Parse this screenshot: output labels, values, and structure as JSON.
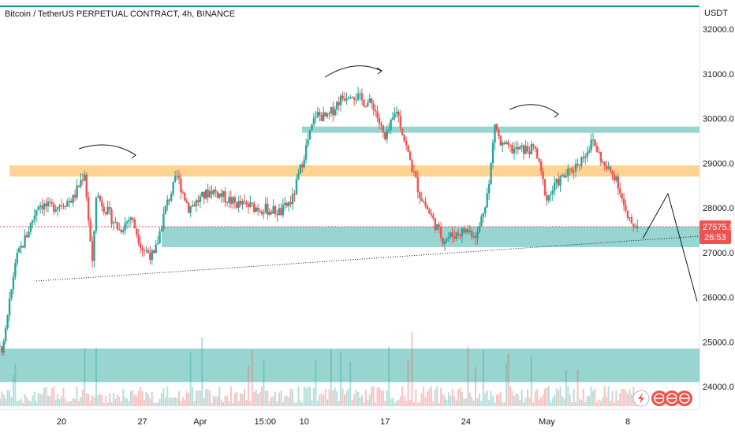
{
  "header": {
    "title": "Bitcoin / TetherUS PERPETUAL CONTRACT, 4h, BINANCE",
    "currency": "USDT"
  },
  "last_price": {
    "price": "27575.9",
    "countdown": "26:53"
  },
  "chart_data": {
    "type": "candlestick",
    "title": "Bitcoin / TetherUS PERPETUAL CONTRACT, 4h, BINANCE",
    "ylabel": "USDT",
    "ylim": [
      23900,
      32300
    ],
    "y_ticks": [
      {
        "value": 24000,
        "label": "24000.0"
      },
      {
        "value": 25000,
        "label": "25000.0"
      },
      {
        "value": 26000,
        "label": "26000.0"
      },
      {
        "value": 27000,
        "label": "27000.0"
      },
      {
        "value": 28000,
        "label": "28000.0"
      },
      {
        "value": 29000,
        "label": "29000.0"
      },
      {
        "value": 30000,
        "label": "30000.0"
      },
      {
        "value": 31000,
        "label": "31000.0"
      },
      {
        "value": 32000,
        "label": "32000.0"
      }
    ],
    "x_ticks": [
      {
        "date": "2023-03-20",
        "label": "20"
      },
      {
        "date": "2023-03-27",
        "label": "27"
      },
      {
        "date": "2023-04-01",
        "label": "Apr"
      },
      {
        "date": "2023-04-06 15:00",
        "label": "15:00"
      },
      {
        "date": "2023-04-10",
        "label": "10"
      },
      {
        "date": "2023-04-17",
        "label": "17"
      },
      {
        "date": "2023-04-24",
        "label": "24"
      },
      {
        "date": "2023-05-01",
        "label": "May"
      },
      {
        "date": "2023-05-08",
        "label": "8"
      }
    ],
    "key_points": [
      {
        "date": "2023-03-13",
        "close": 24500
      },
      {
        "date": "2023-03-15",
        "close": 24900
      },
      {
        "date": "2023-03-16",
        "close": 26800
      },
      {
        "date": "2023-03-17",
        "close": 27400
      },
      {
        "date": "2023-03-18",
        "close": 28100
      },
      {
        "date": "2023-03-19",
        "close": 28000
      },
      {
        "date": "2023-03-21",
        "close": 28200
      },
      {
        "date": "2023-03-22",
        "close": 28800
      },
      {
        "date": "2023-03-22 16:00",
        "close": 26700
      },
      {
        "date": "2023-03-23",
        "close": 28300
      },
      {
        "date": "2023-03-25",
        "close": 27500
      },
      {
        "date": "2023-03-26",
        "close": 27800
      },
      {
        "date": "2023-03-27",
        "close": 27100
      },
      {
        "date": "2023-03-28",
        "close": 26900
      },
      {
        "date": "2023-03-29",
        "close": 28000
      },
      {
        "date": "2023-03-30",
        "close": 28700
      },
      {
        "date": "2023-03-31",
        "close": 28000
      },
      {
        "date": "2023-04-02",
        "close": 28400
      },
      {
        "date": "2023-04-04",
        "close": 28100
      },
      {
        "date": "2023-04-06",
        "close": 28000
      },
      {
        "date": "2023-04-08",
        "close": 27900
      },
      {
        "date": "2023-04-09",
        "close": 28200
      },
      {
        "date": "2023-04-10",
        "close": 29200
      },
      {
        "date": "2023-04-11",
        "close": 30100
      },
      {
        "date": "2023-04-12",
        "close": 30000
      },
      {
        "date": "2023-04-13",
        "close": 30400
      },
      {
        "date": "2023-04-14",
        "close": 30600
      },
      {
        "date": "2023-04-15",
        "close": 30400
      },
      {
        "date": "2023-04-16",
        "close": 30300
      },
      {
        "date": "2023-04-17",
        "close": 29500
      },
      {
        "date": "2023-04-18",
        "close": 30200
      },
      {
        "date": "2023-04-19",
        "close": 29200
      },
      {
        "date": "2023-04-20",
        "close": 28300
      },
      {
        "date": "2023-04-21",
        "close": 27800
      },
      {
        "date": "2023-04-22",
        "close": 27300
      },
      {
        "date": "2023-04-24",
        "close": 27500
      },
      {
        "date": "2023-04-25",
        "close": 27400
      },
      {
        "date": "2023-04-26",
        "close": 28500
      },
      {
        "date": "2023-04-26 12:00",
        "close": 29900
      },
      {
        "date": "2023-04-27",
        "close": 29400
      },
      {
        "date": "2023-04-28",
        "close": 29300
      },
      {
        "date": "2023-04-29",
        "close": 29300
      },
      {
        "date": "2023-04-30",
        "close": 29300
      },
      {
        "date": "2023-05-01",
        "close": 28200
      },
      {
        "date": "2023-05-02",
        "close": 28600
      },
      {
        "date": "2023-05-03",
        "close": 28800
      },
      {
        "date": "2023-05-04",
        "close": 29100
      },
      {
        "date": "2023-05-05",
        "close": 29500
      },
      {
        "date": "2023-05-06",
        "close": 28900
      },
      {
        "date": "2023-05-07",
        "close": 28700
      },
      {
        "date": "2023-05-08",
        "close": 27700
      },
      {
        "date": "2023-05-09",
        "close": 27576
      }
    ],
    "zones": [
      {
        "name": "resistance",
        "from": 28700,
        "to": 28950,
        "color": "#ffcc80"
      },
      {
        "name": "top",
        "from": 29680,
        "to": 29820,
        "color": "#80cbc4"
      },
      {
        "name": "support",
        "from": 27120,
        "to": 27580,
        "color": "#80cbc4"
      },
      {
        "name": "demand",
        "from": 24100,
        "to": 24850,
        "color": "#80cbc4"
      }
    ],
    "colors": {
      "up": "#26a69a",
      "down": "#ef5350",
      "text": "#131722",
      "border": "#f0f3fa",
      "top_bar": "#089981"
    }
  }
}
